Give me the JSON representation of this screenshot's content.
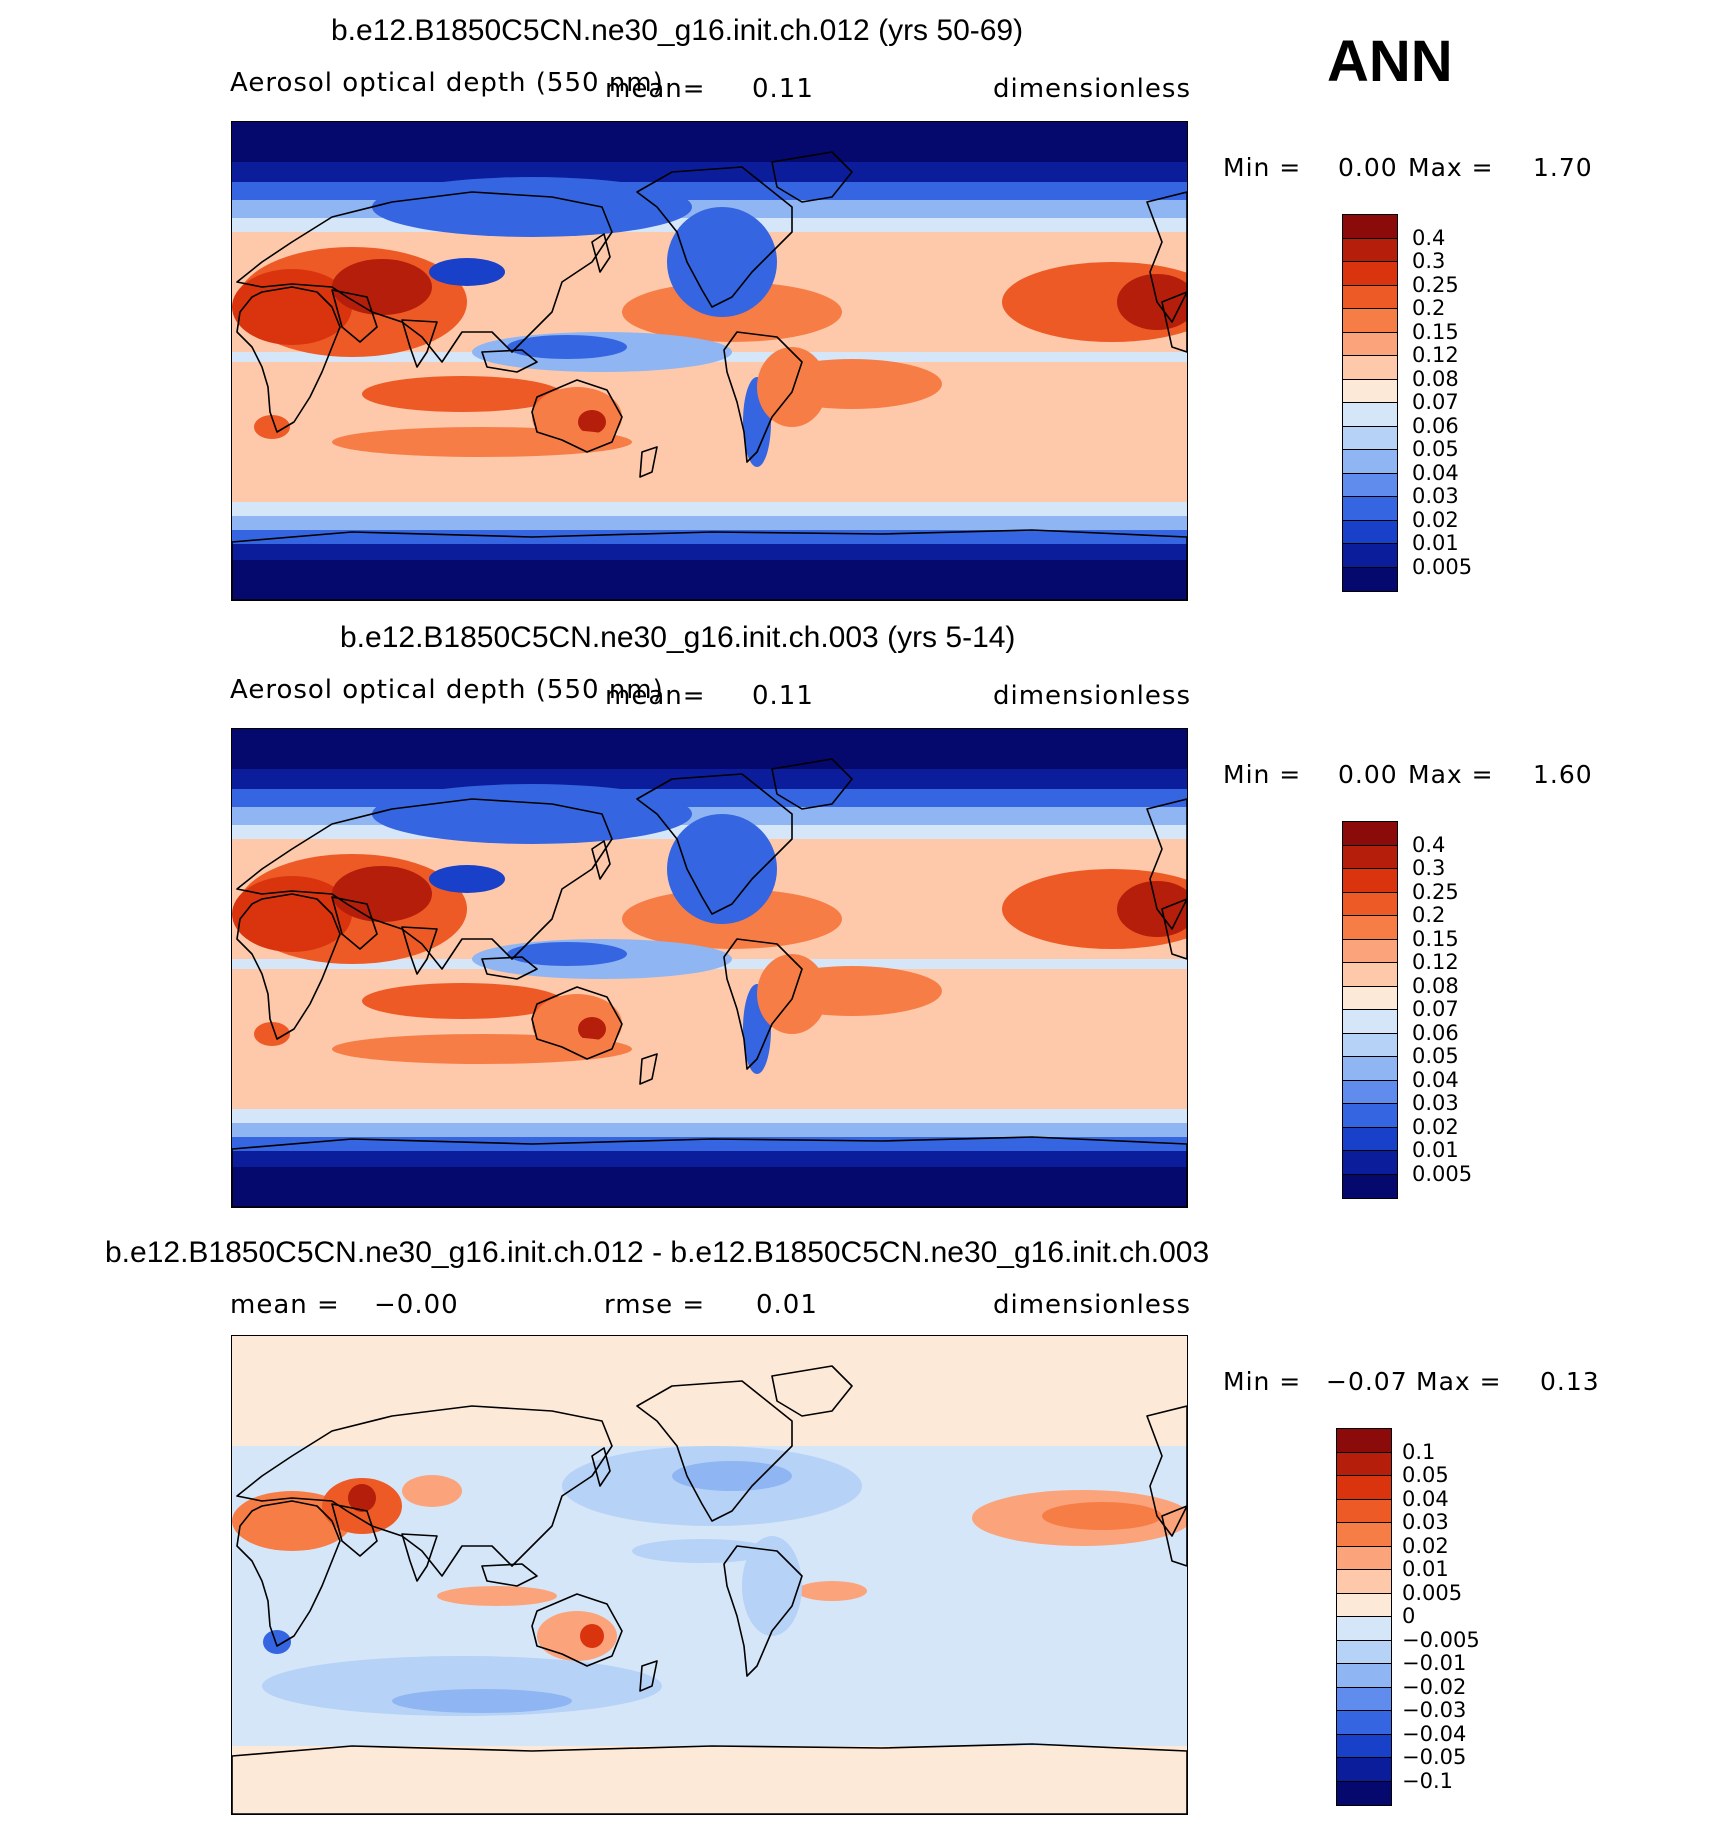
{
  "season": "ANN",
  "panels": [
    {
      "title": "b.e12.B1850C5CN.ne30_g16.init.ch.012 (yrs 50-69)",
      "variable": "Aerosol optical depth (550 nm)",
      "stat1_label": "mean=",
      "stat1_value": "0.11",
      "units": "dimensionless",
      "min_label": "Min =",
      "min_value": "0.00",
      "max_label": "Max =",
      "max_value": "1.70",
      "colorbar": {
        "labels": [
          "0.4",
          "0.3",
          "0.25",
          "0.2",
          "0.15",
          "0.12",
          "0.08",
          "0.07",
          "0.06",
          "0.05",
          "0.04",
          "0.03",
          "0.02",
          "0.01",
          "0.005"
        ],
        "colors": [
          "#8b0b0b",
          "#b51e0a",
          "#d9340e",
          "#ee5a25",
          "#f77d47",
          "#fba47b",
          "#fdc9aa",
          "#fde9d8",
          "#d5e6f9",
          "#b6d2f6",
          "#8fb5f2",
          "#5f8ced",
          "#3565e0",
          "#1940c8",
          "#0c1d9c",
          "#05096e"
        ]
      },
      "theme": "abs"
    },
    {
      "title": "b.e12.B1850C5CN.ne30_g16.init.ch.003 (yrs 5-14)",
      "variable": "Aerosol optical depth (550 nm)",
      "stat1_label": "mean=",
      "stat1_value": "0.11",
      "units": "dimensionless",
      "min_label": "Min =",
      "min_value": "0.00",
      "max_label": "Max =",
      "max_value": "1.60",
      "colorbar": {
        "labels": [
          "0.4",
          "0.3",
          "0.25",
          "0.2",
          "0.15",
          "0.12",
          "0.08",
          "0.07",
          "0.06",
          "0.05",
          "0.04",
          "0.03",
          "0.02",
          "0.01",
          "0.005"
        ],
        "colors": [
          "#8b0b0b",
          "#b51e0a",
          "#d9340e",
          "#ee5a25",
          "#f77d47",
          "#fba47b",
          "#fdc9aa",
          "#fde9d8",
          "#d5e6f9",
          "#b6d2f6",
          "#8fb5f2",
          "#5f8ced",
          "#3565e0",
          "#1940c8",
          "#0c1d9c",
          "#05096e"
        ]
      },
      "theme": "abs"
    },
    {
      "title": "b.e12.B1850C5CN.ne30_g16.init.ch.012 - b.e12.B1850C5CN.ne30_g16.init.ch.003",
      "stat1_label": "mean =",
      "stat1_value": "−0.00",
      "stat2_label": "rmse =",
      "stat2_value": "0.01",
      "units": "dimensionless",
      "min_label": "Min =",
      "min_value": "−0.07",
      "max_label": "Max =",
      "max_value": "0.13",
      "colorbar": {
        "labels": [
          "0.1",
          "0.05",
          "0.04",
          "0.03",
          "0.02",
          "0.01",
          "0.005",
          "0",
          "−0.005",
          "−0.01",
          "−0.02",
          "−0.03",
          "−0.04",
          "−0.05",
          "−0.1"
        ],
        "colors": [
          "#8b0b0b",
          "#b51e0a",
          "#d9340e",
          "#ee5a25",
          "#f77d47",
          "#fba47b",
          "#fdc9aa",
          "#fde9d8",
          "#d5e6f9",
          "#b6d2f6",
          "#8fb5f2",
          "#5f8ced",
          "#3565e0",
          "#1940c8",
          "#0c1d9c",
          "#05096e"
        ]
      },
      "theme": "diff"
    }
  ]
}
